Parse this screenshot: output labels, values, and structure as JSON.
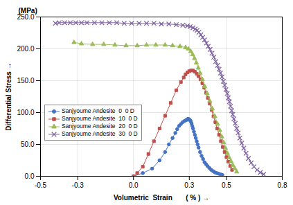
{
  "chart_data": {
    "type": "line",
    "xlabel": "Volumetric  Strain       ( % )",
    "ylabel": "Differential Stress",
    "annotations": [
      "(MPa)"
    ],
    "xlim": [
      -0.5,
      0.8
    ],
    "ylim": [
      0.0,
      250.0
    ],
    "xticks": [
      -0.5,
      -0.3,
      {
        "value": 0.0,
        "label": "0.0"
      },
      0.3,
      0.5,
      0.8
    ],
    "yticks": [
      {
        "value": 0.0,
        "label": "0.0"
      },
      {
        "value": 50.0,
        "label": "50.0"
      },
      {
        "value": 100.0,
        "label": "100.0"
      },
      {
        "value": 150.0,
        "label": "150.0"
      },
      {
        "value": 200.0,
        "label": "200.0"
      },
      {
        "value": 250.0,
        "label": "250.0"
      }
    ],
    "grid": true,
    "legend": "lower left",
    "series": [
      {
        "name": "Sanjyoume Andesite  0  0 D",
        "color": "#4472C4",
        "marker": "circle",
        "x": [
          0.0,
          0.05,
          0.1,
          0.14,
          0.17,
          0.19,
          0.21,
          0.225,
          0.235,
          0.245,
          0.255,
          0.265,
          0.275,
          0.283,
          0.288,
          0.292,
          0.296,
          0.3,
          0.304,
          0.308,
          0.312,
          0.316,
          0.32,
          0.325,
          0.33,
          0.335,
          0.34,
          0.345,
          0.35,
          0.358,
          0.366,
          0.374,
          0.382,
          0.39,
          0.398,
          0.408,
          0.418,
          0.428,
          0.438,
          0.448,
          0.458,
          0.468,
          0.478
        ],
        "values": [
          0,
          5,
          12,
          25,
          38,
          50,
          60,
          68,
          74,
          79,
          82,
          85,
          87,
          88,
          89,
          90,
          90,
          89,
          88,
          86,
          83,
          79,
          75,
          70,
          65,
          60,
          55,
          50,
          45,
          38,
          32,
          27,
          22,
          19,
          16,
          13,
          10,
          8,
          6,
          5,
          4,
          3,
          2
        ]
      },
      {
        "name": "Sanjyoume Andesite  10  0 D",
        "color": "#C0504D",
        "marker": "square",
        "x": [
          0.0,
          0.02,
          0.05,
          0.08,
          0.11,
          0.14,
          0.17,
          0.2,
          0.23,
          0.255,
          0.27,
          0.28,
          0.29,
          0.3,
          0.31,
          0.32,
          0.33,
          0.34,
          0.35,
          0.36,
          0.37,
          0.38,
          0.39,
          0.4,
          0.41,
          0.42,
          0.43,
          0.44,
          0.45,
          0.46,
          0.47,
          0.48,
          0.49,
          0.5,
          0.51,
          0.52,
          0.53
        ],
        "values": [
          0,
          5,
          15,
          35,
          55,
          75,
          95,
          115,
          135,
          148,
          155,
          160,
          163,
          165,
          166,
          166,
          164,
          161,
          157,
          152,
          146,
          139,
          131,
          123,
          114,
          104,
          94,
          85,
          75,
          65,
          55,
          46,
          38,
          30,
          23,
          16,
          10
        ]
      },
      {
        "name": "Sanjyoume Andesite  20  0 D",
        "color": "#9BBB59",
        "marker": "triangle",
        "x": [
          -0.32,
          -0.28,
          -0.22,
          -0.16,
          -0.1,
          -0.04,
          0.02,
          0.07,
          0.12,
          0.17,
          0.21,
          0.25,
          0.28,
          0.295,
          0.308,
          0.318,
          0.328,
          0.338,
          0.348,
          0.358,
          0.37,
          0.383,
          0.396,
          0.41,
          0.424,
          0.438,
          0.452,
          0.464,
          0.475,
          0.485,
          0.495,
          0.505,
          0.515,
          0.525,
          0.535,
          0.545,
          0.555
        ],
        "values": [
          210,
          208,
          207,
          207,
          206,
          205,
          205,
          206,
          206,
          206,
          205,
          204,
          202,
          200,
          196,
          191,
          185,
          178,
          170,
          162,
          152,
          141,
          130,
          118,
          106,
          94,
          82,
          72,
          62,
          53,
          44,
          36,
          29,
          23,
          17,
          12,
          7
        ]
      },
      {
        "name": "Sanjyoume Andesite  30  0 D",
        "color": "#8064A2",
        "marker": "times",
        "x": [
          -0.42,
          -0.4,
          -0.37,
          -0.34,
          -0.31,
          -0.28,
          -0.25,
          -0.21,
          -0.17,
          -0.13,
          -0.09,
          -0.05,
          -0.01,
          0.03,
          0.07,
          0.11,
          0.15,
          0.19,
          0.23,
          0.265,
          0.29,
          0.305,
          0.32,
          0.332,
          0.342,
          0.352,
          0.362,
          0.372,
          0.382,
          0.392,
          0.402,
          0.412,
          0.422,
          0.432,
          0.442,
          0.452,
          0.46,
          0.468,
          0.476,
          0.483,
          0.49,
          0.497,
          0.504,
          0.51,
          0.516,
          0.522,
          0.528,
          0.534,
          0.54,
          0.547,
          0.555,
          0.563,
          0.572,
          0.582,
          0.593,
          0.605,
          0.618,
          0.633,
          0.648,
          0.665,
          0.682,
          0.7
        ],
        "values": [
          240,
          241,
          241,
          241,
          241,
          241,
          241,
          241,
          241,
          241,
          241,
          240,
          240,
          240,
          240,
          240,
          239,
          239,
          238,
          237,
          236,
          235,
          233,
          231,
          229,
          226,
          222,
          218,
          214,
          209,
          204,
          199,
          193,
          187,
          180,
          174,
          168,
          162,
          156,
          149,
          143,
          136,
          130,
          123,
          117,
          110,
          103,
          97,
          90,
          83,
          75,
          68,
          60,
          52,
          44,
          36,
          28,
          21,
          15,
          10,
          6,
          3
        ]
      }
    ]
  }
}
